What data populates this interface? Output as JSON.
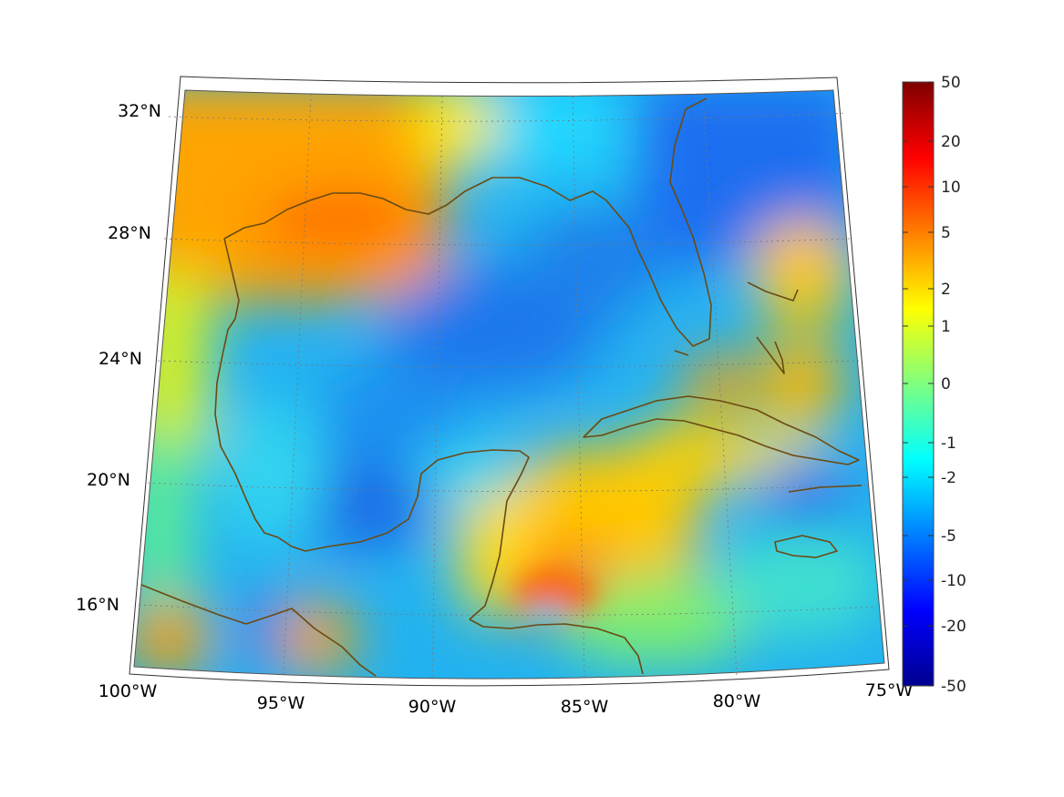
{
  "map": {
    "longitude_labels": [
      "100°W",
      "95°W",
      "90°W",
      "85°W",
      "80°W",
      "75°W"
    ],
    "latitude_labels": [
      "32°N",
      "28°N",
      "24°N",
      "20°N",
      "16°N"
    ],
    "extent": {
      "lon_min": -100,
      "lon_max": -75,
      "lat_min": 14,
      "lat_max": 33
    },
    "grid": true,
    "coastline_color": "#6b4a12",
    "colormap": "jet"
  },
  "colorbar": {
    "tick_labels": [
      "50",
      "20",
      "10",
      "5",
      "2",
      "1",
      "0",
      "-1",
      "-2",
      "-5",
      "-10",
      "-20",
      "-50"
    ],
    "colors": [
      "#7f0000",
      "#ff0000",
      "#ff7f00",
      "#ffff00",
      "#7fff7f",
      "#00ffff",
      "#007fff",
      "#0000ff",
      "#00008f"
    ]
  }
}
